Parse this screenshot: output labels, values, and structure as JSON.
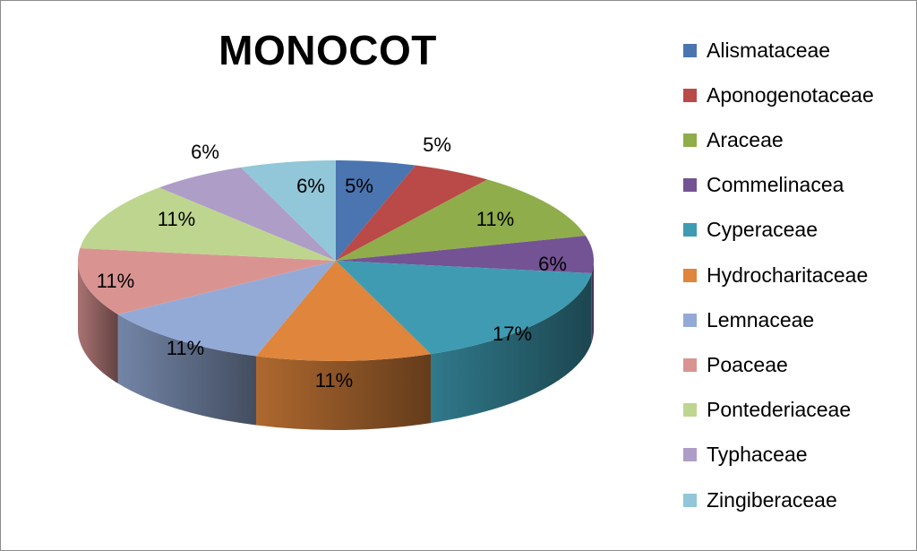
{
  "chart_data": {
    "type": "pie",
    "title": "MONOCOT",
    "legend_position": "right",
    "slices": [
      {
        "label": "Alismataceae",
        "value": 5,
        "display": "5%",
        "color": "#4a75b0"
      },
      {
        "label": "Aponogenotaceae",
        "value": 5,
        "display": "5%",
        "color": "#b94a47"
      },
      {
        "label": "Araceae",
        "value": 11,
        "display": "11%",
        "color": "#8fad4a"
      },
      {
        "label": "Commelinacea",
        "value": 6,
        "display": "6%",
        "color": "#735393"
      },
      {
        "label": "Cyperaceae",
        "value": 17,
        "display": "17%",
        "color": "#3e9bb2"
      },
      {
        "label": "Hydrocharitaceae",
        "value": 11,
        "display": "11%",
        "color": "#df853c"
      },
      {
        "label": "Lemnaceae",
        "value": 11,
        "display": "11%",
        "color": "#94aad6"
      },
      {
        "label": "Poaceae",
        "value": 11,
        "display": "11%",
        "color": "#d99492"
      },
      {
        "label": "Pontederiaceae",
        "value": 11,
        "display": "11%",
        "color": "#bed58f"
      },
      {
        "label": "Typhaceae",
        "value": 6,
        "display": "6%",
        "color": "#ae9dc6"
      },
      {
        "label": "Zingiberaceae",
        "value": 6,
        "display": "6%",
        "color": "#91c7d8"
      }
    ]
  }
}
